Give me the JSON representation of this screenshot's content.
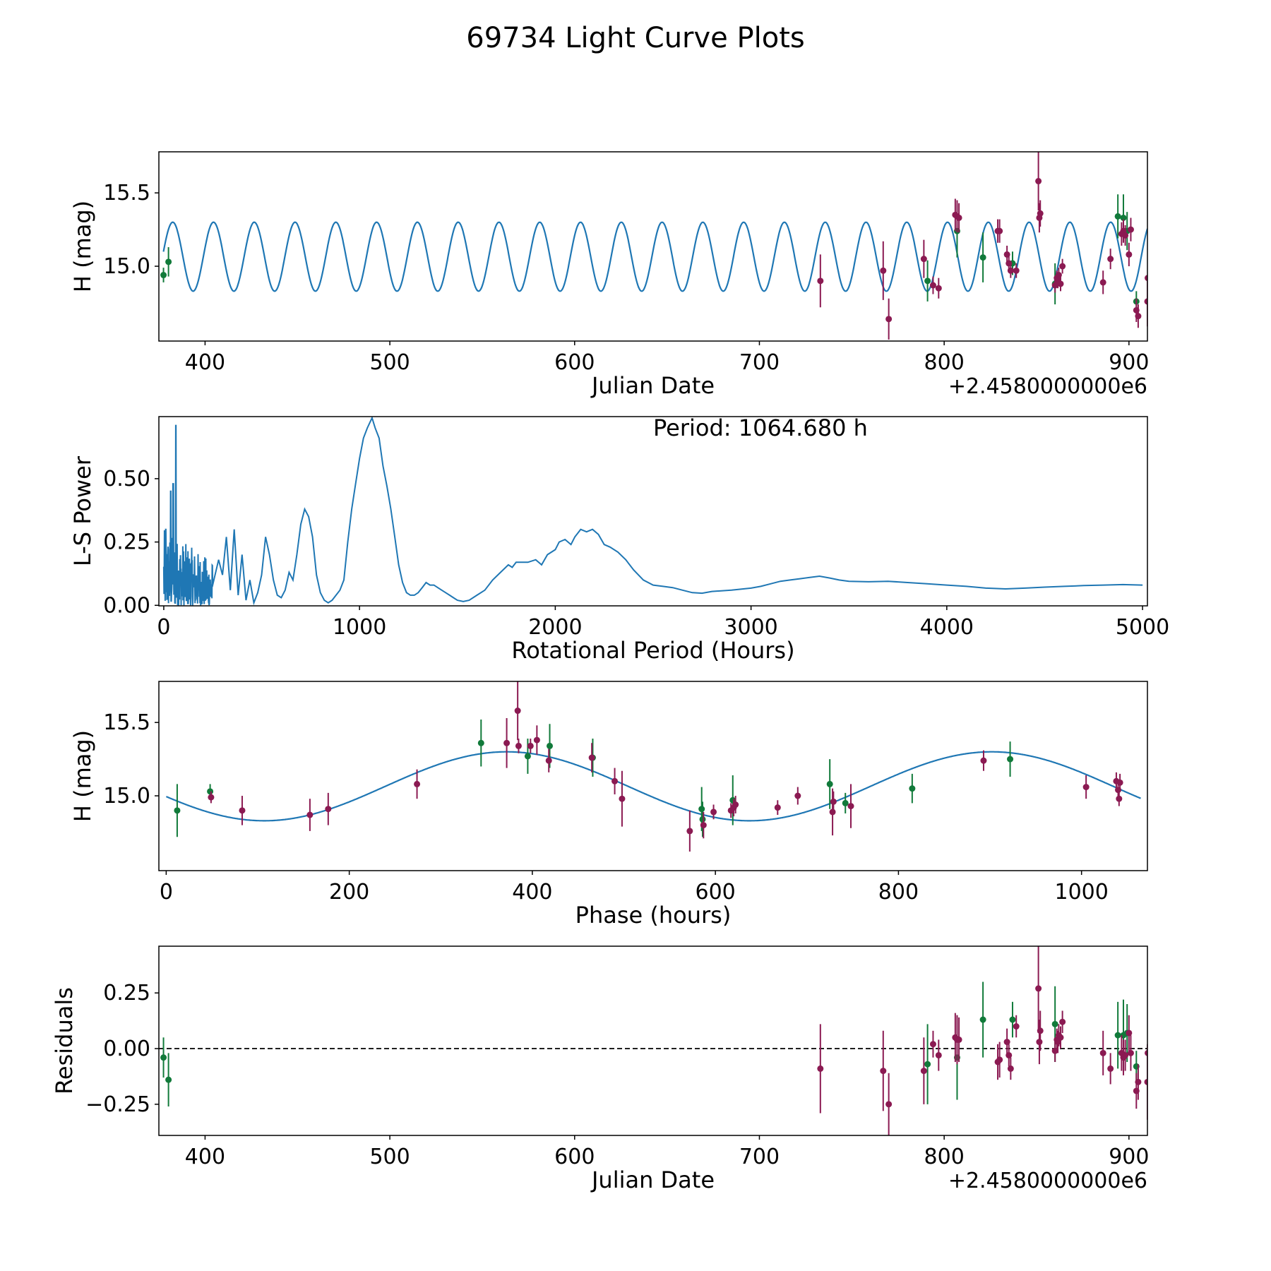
{
  "figure": {
    "title": "69734 Light Curve Plots",
    "colors": {
      "model": "#1f77b4",
      "series_g": "#117a3a",
      "series_p": "#8b1a52",
      "axis": "#000000",
      "refline": "#000000"
    }
  },
  "chart_data": [
    {
      "id": "lc",
      "type": "scatter",
      "title": "",
      "xlabel": "Julian Date",
      "ylabel": "H (mag)",
      "offset_text": "+2.4580000000e6",
      "xlim": [
        375,
        910
      ],
      "ylim": [
        14.49,
        15.78
      ],
      "y_inverted": false,
      "xticks": [
        400,
        500,
        600,
        700,
        800,
        900
      ],
      "yticks": [
        15.0,
        15.5
      ],
      "ytick_labels": [
        "15.0",
        "15.5"
      ],
      "model": {
        "type": "sinusoid",
        "mean": 15.065,
        "amplitude": 0.235,
        "period_days": 22.07,
        "phase_ref": 382.5,
        "x_range": [
          377.5,
          910
        ]
      },
      "series": [
        {
          "name": "green",
          "color_key": "series_g",
          "x": [
            377.5,
            380.2,
            791.0,
            807.0,
            821.0,
            837.0,
            860.0,
            894.0,
            897.0,
            899.0,
            904.0
          ],
          "y": [
            14.94,
            15.03,
            14.9,
            15.24,
            15.06,
            15.02,
            14.88,
            15.34,
            15.33,
            15.24,
            14.76
          ],
          "err": [
            0.05,
            0.1,
            0.14,
            0.18,
            0.17,
            0.08,
            0.14,
            0.15,
            0.16,
            0.13,
            0.07
          ]
        },
        {
          "name": "purple",
          "color_key": "series_p",
          "x": [
            733.0,
            767.0,
            770.0,
            789.0,
            794.0,
            797.0,
            806.0,
            807.0,
            808.0,
            829.0,
            830.0,
            834.0,
            835.0,
            836.0,
            839.0,
            851.0,
            851.5,
            852.0,
            860.0,
            861.0,
            861.5,
            862.0,
            863.0,
            864.0,
            886.0,
            890.0,
            896.0,
            897.0,
            898.0,
            900.0,
            901.0,
            904.0,
            905.0,
            910.0,
            910.2
          ],
          "y": [
            14.9,
            14.97,
            14.64,
            15.05,
            14.87,
            14.85,
            15.35,
            15.34,
            15.33,
            15.24,
            15.24,
            15.08,
            15.02,
            14.97,
            14.97,
            15.58,
            15.33,
            15.36,
            14.87,
            14.92,
            14.9,
            14.94,
            14.88,
            15.0,
            14.89,
            15.05,
            15.22,
            15.24,
            15.21,
            15.08,
            15.25,
            14.7,
            14.66,
            14.76,
            14.92
          ],
          "err": [
            0.18,
            0.2,
            0.14,
            0.13,
            0.06,
            0.07,
            0.11,
            0.11,
            0.1,
            0.08,
            0.08,
            0.06,
            0.05,
            0.05,
            0.05,
            0.2,
            0.1,
            0.09,
            0.05,
            0.05,
            0.05,
            0.05,
            0.05,
            0.05,
            0.08,
            0.07,
            0.08,
            0.08,
            0.07,
            0.08,
            0.08,
            0.08,
            0.08,
            0.17,
            0.17
          ]
        }
      ]
    },
    {
      "id": "ls",
      "type": "line",
      "title": "",
      "xlabel": "Rotational Period (Hours)",
      "ylabel": "L-S Power",
      "annotation": "Period: 1064.680 h",
      "xlim": [
        -25,
        5025
      ],
      "ylim": [
        -0.002,
        0.745
      ],
      "xticks": [
        0,
        1000,
        2000,
        3000,
        4000,
        5000
      ],
      "yticks": [
        0.0,
        0.25,
        0.5
      ],
      "ytick_labels": [
        "0.00",
        "0.25",
        "0.50"
      ],
      "curve": {
        "x": [
          250,
          280,
          300,
          320,
          340,
          360,
          380,
          400,
          420,
          440,
          460,
          480,
          500,
          520,
          540,
          560,
          580,
          600,
          620,
          640,
          660,
          680,
          700,
          720,
          740,
          760,
          780,
          800,
          820,
          840,
          860,
          880,
          900,
          920,
          940,
          960,
          980,
          1000,
          1020,
          1040,
          1064,
          1080,
          1100,
          1120,
          1140,
          1160,
          1180,
          1200,
          1220,
          1240,
          1260,
          1280,
          1300,
          1320,
          1340,
          1360,
          1380,
          1400,
          1420,
          1440,
          1460,
          1480,
          1500,
          1530,
          1560,
          1600,
          1640,
          1680,
          1720,
          1760,
          1780,
          1800,
          1830,
          1860,
          1900,
          1930,
          1960,
          2000,
          2020,
          2050,
          2080,
          2100,
          2130,
          2160,
          2190,
          2220,
          2250,
          2280,
          2320,
          2360,
          2400,
          2450,
          2500,
          2550,
          2600,
          2650,
          2700,
          2750,
          2800,
          2900,
          3000,
          3050,
          3100,
          3150,
          3200,
          3250,
          3300,
          3350,
          3400,
          3450,
          3500,
          3600,
          3700,
          3800,
          3900,
          4000,
          4100,
          4200,
          4300,
          4400,
          4500,
          4600,
          4700,
          4800,
          4900,
          5000
        ],
        "y": [
          0.08,
          0.18,
          0.12,
          0.27,
          0.06,
          0.3,
          0.04,
          0.2,
          0.02,
          0.1,
          0.01,
          0.05,
          0.12,
          0.27,
          0.2,
          0.1,
          0.04,
          0.03,
          0.06,
          0.13,
          0.1,
          0.2,
          0.32,
          0.38,
          0.35,
          0.27,
          0.12,
          0.05,
          0.02,
          0.01,
          0.02,
          0.04,
          0.06,
          0.1,
          0.25,
          0.38,
          0.48,
          0.58,
          0.66,
          0.7,
          0.74,
          0.7,
          0.66,
          0.55,
          0.47,
          0.38,
          0.27,
          0.16,
          0.09,
          0.05,
          0.04,
          0.04,
          0.05,
          0.07,
          0.09,
          0.08,
          0.08,
          0.07,
          0.06,
          0.05,
          0.04,
          0.03,
          0.02,
          0.015,
          0.02,
          0.04,
          0.06,
          0.1,
          0.13,
          0.16,
          0.15,
          0.17,
          0.17,
          0.17,
          0.18,
          0.16,
          0.2,
          0.22,
          0.25,
          0.26,
          0.24,
          0.27,
          0.3,
          0.29,
          0.3,
          0.28,
          0.24,
          0.23,
          0.21,
          0.18,
          0.14,
          0.1,
          0.08,
          0.075,
          0.07,
          0.06,
          0.05,
          0.048,
          0.055,
          0.06,
          0.068,
          0.075,
          0.085,
          0.095,
          0.1,
          0.105,
          0.11,
          0.115,
          0.108,
          0.1,
          0.095,
          0.093,
          0.095,
          0.09,
          0.085,
          0.08,
          0.075,
          0.068,
          0.065,
          0.068,
          0.072,
          0.075,
          0.078,
          0.08,
          0.082,
          0.08
        ]
      },
      "noise_region": {
        "x_range": [
          0,
          250
        ],
        "spikes_x": [
          10,
          35,
          48,
          62
        ],
        "spikes_y": [
          0.3,
          0.45,
          0.48,
          0.71
        ]
      }
    },
    {
      "id": "phase",
      "type": "scatter",
      "title": "",
      "xlabel": "Phase (hours)",
      "ylabel": "H (mag)",
      "xlim": [
        -8,
        1072
      ],
      "ylim": [
        14.49,
        15.78
      ],
      "xticks": [
        0,
        200,
        400,
        600,
        800,
        1000
      ],
      "yticks": [
        15.0,
        15.5
      ],
      "ytick_labels": [
        "15.0",
        "15.5"
      ],
      "model": {
        "type": "sinusoid",
        "mean": 15.065,
        "amplitude": 0.235,
        "period_hours": 530,
        "peak_at": 372,
        "x_range": [
          0,
          1064.68
        ]
      },
      "series": [
        {
          "name": "green",
          "color_key": "series_g",
          "x": [
            12,
            48,
            344,
            395,
            419,
            466,
            585,
            586,
            619,
            725,
            742,
            815,
            922
          ],
          "y": [
            14.9,
            15.03,
            15.36,
            15.27,
            15.34,
            15.26,
            14.91,
            14.84,
            14.97,
            15.08,
            14.95,
            15.05,
            15.25
          ],
          "err": [
            0.18,
            0.05,
            0.16,
            0.12,
            0.15,
            0.13,
            0.15,
            0.12,
            0.17,
            0.17,
            0.07,
            0.1,
            0.12
          ],
          "tags": [
            "",
            "",
            "",
            "",
            "",
            "",
            "",
            "",
            "",
            "",
            "",
            "",
            ""
          ]
        },
        {
          "name": "purple",
          "color_key": "series_p",
          "x": [
            49,
            83,
            157,
            177,
            274,
            372,
            384,
            385,
            398,
            405,
            418,
            465,
            490,
            498,
            572,
            587,
            598,
            617,
            620,
            622,
            668,
            690,
            728,
            729,
            748,
            893,
            1005,
            1038,
            1040,
            1041,
            1042
          ],
          "y": [
            14.99,
            14.9,
            14.87,
            14.91,
            15.08,
            15.36,
            15.58,
            15.34,
            15.34,
            15.38,
            15.24,
            15.26,
            15.1,
            14.98,
            14.76,
            14.8,
            14.89,
            14.9,
            14.92,
            14.94,
            14.92,
            15.0,
            14.89,
            14.96,
            14.93,
            15.24,
            15.06,
            15.1,
            15.04,
            14.98,
            15.09
          ],
          "err": [
            0.04,
            0.1,
            0.11,
            0.11,
            0.1,
            0.17,
            0.2,
            0.05,
            0.05,
            0.1,
            0.08,
            0.1,
            0.09,
            0.19,
            0.14,
            0.09,
            0.05,
            0.05,
            0.06,
            0.06,
            0.05,
            0.06,
            0.16,
            0.07,
            0.15,
            0.07,
            0.08,
            0.06,
            0.06,
            0.05,
            0.06
          ]
        }
      ]
    },
    {
      "id": "resid",
      "type": "scatter",
      "title": "",
      "xlabel": "Julian Date",
      "ylabel": "Residuals",
      "offset_text": "+2.4580000000e6",
      "xlim": [
        375,
        910
      ],
      "ylim": [
        -0.39,
        0.46
      ],
      "xticks": [
        400,
        500,
        600,
        700,
        800,
        900
      ],
      "yticks": [
        -0.25,
        0.0,
        0.25
      ],
      "ytick_labels": [
        "−0.25",
        "0.00",
        "0.25"
      ],
      "refline_y": 0.0,
      "series": [
        {
          "name": "green",
          "color_key": "series_g",
          "x": [
            377.5,
            380.2,
            791.0,
            807.0,
            821.0,
            837.0,
            860.0,
            894.0,
            897.0,
            899.0,
            904.0
          ],
          "y": [
            -0.04,
            -0.14,
            -0.07,
            -0.04,
            0.13,
            0.13,
            0.11,
            0.06,
            0.06,
            0.07,
            -0.08
          ],
          "err": [
            0.09,
            0.12,
            0.18,
            0.19,
            0.17,
            0.08,
            0.17,
            0.15,
            0.16,
            0.13,
            0.07
          ]
        },
        {
          "name": "purple",
          "color_key": "series_p",
          "x": [
            733.0,
            767.0,
            770.0,
            789.0,
            794.0,
            797.0,
            806.0,
            807.0,
            808.0,
            829.0,
            830.0,
            834.0,
            835.0,
            836.0,
            839.0,
            851.0,
            851.5,
            852.0,
            860.0,
            861.0,
            861.5,
            862.0,
            863.0,
            864.0,
            886.0,
            890.0,
            896.0,
            897.0,
            898.0,
            900.0,
            901.0,
            904.0,
            905.0,
            910.0,
            910.2
          ],
          "y": [
            -0.09,
            -0.1,
            -0.25,
            -0.1,
            0.02,
            -0.03,
            0.05,
            0.04,
            0.04,
            -0.06,
            -0.05,
            0.03,
            -0.03,
            -0.09,
            0.1,
            0.27,
            0.03,
            0.08,
            -0.01,
            0.04,
            0.03,
            0.06,
            0.05,
            0.12,
            -0.02,
            -0.09,
            -0.02,
            -0.04,
            -0.03,
            0.07,
            -0.02,
            -0.19,
            -0.15,
            -0.15,
            -0.02
          ],
          "err": [
            0.2,
            0.18,
            0.14,
            0.15,
            0.06,
            0.07,
            0.11,
            0.11,
            0.1,
            0.08,
            0.08,
            0.06,
            0.05,
            0.05,
            0.05,
            0.2,
            0.1,
            0.09,
            0.05,
            0.05,
            0.05,
            0.05,
            0.05,
            0.05,
            0.1,
            0.07,
            0.08,
            0.08,
            0.07,
            0.08,
            0.08,
            0.08,
            0.08,
            0.17,
            0.2
          ]
        }
      ]
    }
  ]
}
